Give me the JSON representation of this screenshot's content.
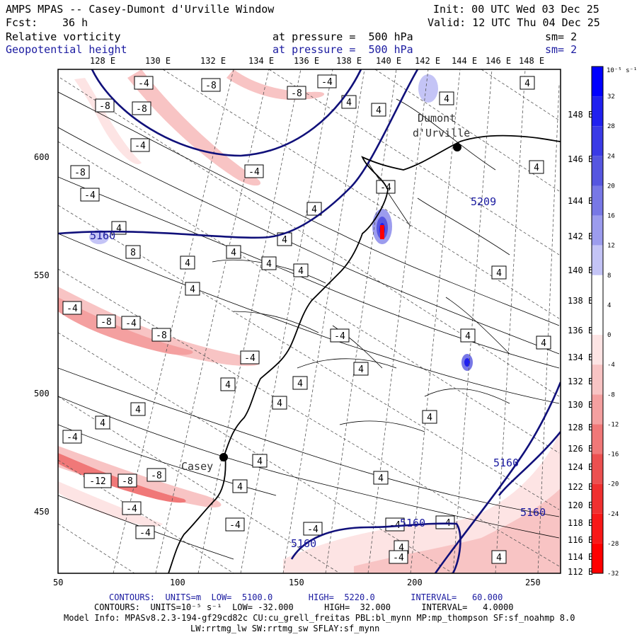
{
  "header": {
    "title": "AMPS MPAS -- Casey-Dumont d'Urville Window",
    "fcst_label": "Fcst:",
    "fcst_value": "36 h",
    "init": "Init: 00 UTC Wed 03 Dec 25",
    "valid": "Valid: 12 UTC Thu 04 Dec 25",
    "field1_name": "Relative vorticity",
    "field1_level": "at pressure =  500 hPa",
    "field1_sm": "sm= 2",
    "field2_name": "Geopotential height",
    "field2_level": "at pressure =  500 hPa",
    "field2_sm": "sm= 2"
  },
  "map": {
    "top_lon_labels": [
      "128 E",
      "130 E",
      "132 E",
      "134 E",
      "136 E",
      "138 E",
      "140 E",
      "142 E",
      "144 E",
      "146 E",
      "148 E"
    ],
    "right_lon_labels": [
      "148 E",
      "146 E",
      "144 E",
      "142 E",
      "140 E",
      "138 E",
      "136 E",
      "134 E",
      "132 E",
      "130 E",
      "128 E",
      "126 E",
      "124 E",
      "122 E",
      "120 E",
      "118 E",
      "116 E",
      "114 E",
      "112 E"
    ],
    "y_ticks": [
      "600",
      "550",
      "500",
      "450"
    ],
    "x_ticks": [
      "50",
      "100",
      "150",
      "200",
      "250"
    ],
    "stations": [
      {
        "name": "Dumont d'Urville",
        "line1": "Dumont",
        "line2": "d'Urville"
      },
      {
        "name": "Casey",
        "line1": "Casey"
      }
    ],
    "height_labels": [
      "5160",
      "5160",
      "5160",
      "5160",
      "5160",
      "5160",
      "5209"
    ],
    "vort_labels": [
      "-4",
      "-8",
      "-4",
      "-8",
      "-4",
      "-8",
      "-4",
      "4",
      "4",
      "4",
      "-8",
      "-4",
      "-8",
      "-4",
      "4",
      "4",
      "8",
      "4",
      "4",
      "4",
      "4",
      "4",
      "-4",
      "-8",
      "-4",
      "-8",
      "-4",
      "4",
      "4",
      "4",
      "-4",
      "-12",
      "-8",
      "-8",
      "-4",
      "4",
      "4",
      "-4",
      "4",
      "4",
      "-4",
      "4",
      "4",
      "-4",
      "-4",
      "-4",
      "4",
      "4",
      "-4",
      "-4",
      "4",
      "4",
      "4",
      "4",
      "4",
      "4",
      "4"
    ]
  },
  "colorbar": {
    "unit_label": "10⁻⁵ s⁻¹",
    "labels": [
      "32",
      "28",
      "24",
      "20",
      "16",
      "12",
      "8",
      "4",
      "0",
      "-4",
      "-8",
      "-12",
      "-16",
      "-20",
      "-24",
      "-28",
      "-32"
    ],
    "colors": [
      "#0000ff",
      "#2020ef",
      "#3a3ae6",
      "#5656e0",
      "#7878e6",
      "#9c9cee",
      "#c4c4f6",
      "#ffffff",
      "#ffffff",
      "#fde4e4",
      "#f8c4c4",
      "#f4a0a0",
      "#f07878",
      "#ec5050",
      "#f03030",
      "#f81818",
      "#ff0000"
    ]
  },
  "footer": {
    "contours1": "CONTOURS:  UNITS=m  LOW=  5100.0       HIGH=  5220.0       INTERVAL=   60.000",
    "contours2": "CONTOURS:  UNITS=10⁻⁵ s⁻¹  LOW= -32.000      HIGH=  32.000      INTERVAL=   4.0000",
    "model_info": "Model Info: MPASv8.2.3-194-gf29cd82c CU:cu_grell_freitas PBL:bl_mynn MP:mp_thompson SF:sf_noahmp 8.0",
    "model_info2": "LW:rrtmg_lw SW:rrtmg_sw SFLAY:sf_mynn"
  }
}
